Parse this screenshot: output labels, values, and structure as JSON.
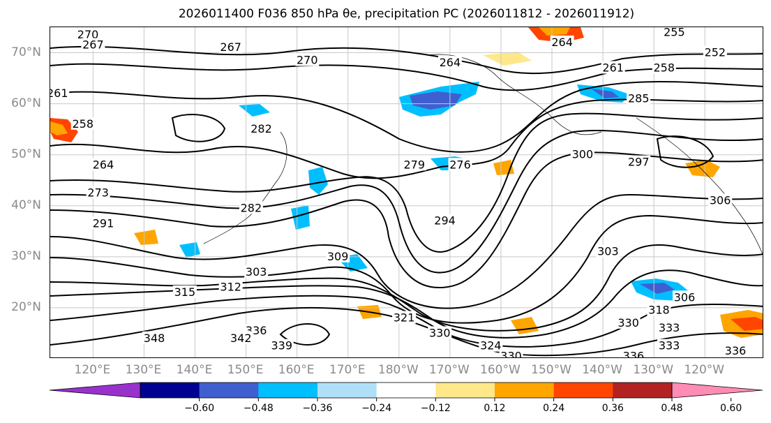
{
  "title": "2026011400 F036 850 hPa θe, precipitation PC (2026011812 - 2026011912)",
  "lat_labels": [
    {
      "text": "70°N",
      "lat": 70
    },
    {
      "text": "60°N",
      "lat": 60
    },
    {
      "text": "50°N",
      "lat": 50
    },
    {
      "text": "40°N",
      "lat": 40
    },
    {
      "text": "30°N",
      "lat": 30
    },
    {
      "text": "20°N",
      "lat": 20
    }
  ],
  "lon_labels": [
    {
      "text": "120°E",
      "lon": 120
    },
    {
      "text": "130°E",
      "lon": 130
    },
    {
      "text": "140°E",
      "lon": 140
    },
    {
      "text": "150°E",
      "lon": 150
    },
    {
      "text": "160°E",
      "lon": 160
    },
    {
      "text": "170°E",
      "lon": 170
    },
    {
      "text": "180°W",
      "lon": 180
    },
    {
      "text": "170°W",
      "lon": 190
    },
    {
      "text": "160°W",
      "lon": 200
    },
    {
      "text": "150°W",
      "lon": 210
    },
    {
      "text": "140°W",
      "lon": 220
    },
    {
      "text": "130°W",
      "lon": 230
    },
    {
      "text": "120°W",
      "lon": 240
    }
  ],
  "map_extent": {
    "lon_min": 111.6,
    "lon_max": 251.6,
    "lat_min": 10,
    "lat_max": 75
  },
  "contour_labels": [
    {
      "text": "270",
      "lon": 119,
      "lat": 73.5
    },
    {
      "text": "267",
      "lon": 120,
      "lat": 71.5
    },
    {
      "text": "267",
      "lon": 147,
      "lat": 71
    },
    {
      "text": "270",
      "lon": 162,
      "lat": 68.5
    },
    {
      "text": "264",
      "lon": 190,
      "lat": 68
    },
    {
      "text": "264",
      "lon": 212,
      "lat": 72
    },
    {
      "text": "255",
      "lon": 234,
      "lat": 74
    },
    {
      "text": "252",
      "lon": 242,
      "lat": 70
    },
    {
      "text": "261",
      "lon": 222,
      "lat": 67
    },
    {
      "text": "258",
      "lon": 232,
      "lat": 67
    },
    {
      "text": "261",
      "lon": 113,
      "lat": 62
    },
    {
      "text": "285",
      "lon": 227,
      "lat": 61
    },
    {
      "text": "258",
      "lon": 118,
      "lat": 56
    },
    {
      "text": "282",
      "lon": 153,
      "lat": 55
    },
    {
      "text": "264",
      "lon": 122,
      "lat": 48
    },
    {
      "text": "279",
      "lon": 183,
      "lat": 48
    },
    {
      "text": "276",
      "lon": 192,
      "lat": 48
    },
    {
      "text": "300",
      "lon": 216,
      "lat": 50
    },
    {
      "text": "297",
      "lon": 227,
      "lat": 48.5
    },
    {
      "text": "273",
      "lon": 121,
      "lat": 42.5
    },
    {
      "text": "282",
      "lon": 151,
      "lat": 39.5
    },
    {
      "text": "294",
      "lon": 189,
      "lat": 37
    },
    {
      "text": "291",
      "lon": 122,
      "lat": 36.5
    },
    {
      "text": "306",
      "lon": 243,
      "lat": 41
    },
    {
      "text": "303",
      "lon": 221,
      "lat": 31
    },
    {
      "text": "309",
      "lon": 168,
      "lat": 30
    },
    {
      "text": "303",
      "lon": 152,
      "lat": 27
    },
    {
      "text": "315",
      "lon": 138,
      "lat": 23
    },
    {
      "text": "312",
      "lon": 147,
      "lat": 24
    },
    {
      "text": "306",
      "lon": 236,
      "lat": 22
    },
    {
      "text": "318",
      "lon": 231,
      "lat": 19.5
    },
    {
      "text": "321",
      "lon": 181,
      "lat": 18
    },
    {
      "text": "330",
      "lon": 225,
      "lat": 17
    },
    {
      "text": "330",
      "lon": 188,
      "lat": 15
    },
    {
      "text": "333",
      "lon": 233,
      "lat": 16
    },
    {
      "text": "336",
      "lon": 152,
      "lat": 15.5
    },
    {
      "text": "333",
      "lon": 233,
      "lat": 12.5
    },
    {
      "text": "336",
      "lon": 246,
      "lat": 11.5
    },
    {
      "text": "336",
      "lon": 226,
      "lat": 10.5
    },
    {
      "text": "348",
      "lon": 132,
      "lat": 14
    },
    {
      "text": "342",
      "lon": 149,
      "lat": 14
    },
    {
      "text": "339",
      "lon": 157,
      "lat": 12.5
    },
    {
      "text": "324",
      "lon": 198,
      "lat": 12.5
    },
    {
      "text": "330",
      "lon": 202,
      "lat": 10.5
    }
  ],
  "colorbar": {
    "colors": [
      "#9932cc",
      "#000090",
      "#3f5fd1",
      "#00bfff",
      "#b0e0f8",
      "#ffffff",
      "#ffe88a",
      "#ffa500",
      "#ff4500",
      "#b22222",
      "#ff8cb4"
    ],
    "ticks": [
      "−0.60",
      "−0.48",
      "−0.36",
      "−0.24",
      "−0.12",
      "0.12",
      "0.24",
      "0.36",
      "0.48",
      "0.60"
    ]
  }
}
